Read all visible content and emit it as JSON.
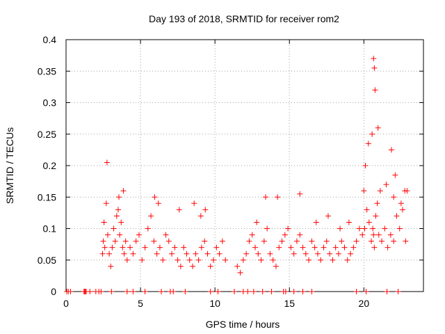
{
  "chart_data": {
    "type": "scatter",
    "title": "Day 193 of 2018, SRMTID for receiver rom2",
    "xlabel": "GPS time / hours",
    "ylabel": "SRMTID / TECUs",
    "xlim": [
      0,
      24
    ],
    "ylim": [
      0,
      0.4
    ],
    "xticks": [
      0,
      5,
      10,
      15,
      20
    ],
    "xtick_labels": [
      "0",
      "5",
      "10",
      "15",
      "20"
    ],
    "yticks": [
      0,
      0.05,
      0.1,
      0.15,
      0.2,
      0.25,
      0.3,
      0.35,
      0.4
    ],
    "ytick_labels": [
      "0",
      "0.05",
      "0.1",
      "0.15",
      "0.2",
      "0.25",
      "0.3",
      "0.35",
      "0.4"
    ],
    "grid": true,
    "marker": "+",
    "color": "#ff0000",
    "series": [
      {
        "name": "SRMTID",
        "x": [
          0.05,
          0.15,
          1.2,
          1.25,
          1.3,
          1.35,
          2.0,
          2.2,
          2.45,
          2.5,
          2.55,
          2.6,
          2.7,
          2.8,
          2.9,
          3.0,
          3.1,
          3.2,
          3.3,
          3.4,
          3.5,
          3.6,
          3.7,
          3.8,
          3.9,
          4.0,
          4.1,
          4.3,
          4.5,
          4.7,
          4.9,
          5.1,
          5.3,
          5.5,
          5.7,
          5.9,
          6.1,
          6.3,
          6.5,
          6.7,
          6.9,
          7.1,
          7.3,
          7.5,
          7.7,
          7.9,
          8.1,
          8.3,
          8.5,
          8.7,
          8.9,
          9.1,
          9.3,
          9.5,
          9.7,
          9.9,
          10.1,
          10.3,
          10.5,
          10.7,
          11.5,
          11.7,
          11.9,
          12.1,
          12.3,
          12.5,
          12.7,
          12.9,
          13.1,
          13.3,
          13.5,
          13.7,
          13.9,
          14.1,
          14.3,
          14.5,
          14.7,
          14.9,
          15.1,
          15.3,
          15.5,
          15.7,
          15.9,
          16.1,
          16.3,
          16.5,
          16.7,
          16.9,
          17.1,
          17.3,
          17.5,
          17.7,
          17.9,
          18.1,
          18.3,
          18.5,
          18.7,
          18.9,
          19.1,
          19.3,
          19.5,
          19.7,
          19.9,
          20.05,
          20.2,
          20.35,
          20.5,
          20.6,
          20.65,
          20.7,
          20.8,
          20.9,
          21.0,
          21.2,
          21.4,
          21.6,
          21.8,
          22.0,
          22.2,
          22.4,
          22.6,
          22.8,
          2.75,
          3.55,
          5.95,
          8.6,
          9.35,
          13.4,
          15.7,
          20.0,
          20.1,
          20.3,
          20.55,
          20.65,
          20.7,
          20.75,
          20.95,
          21.85,
          22.1,
          22.75,
          0.3,
          1.6,
          2.35,
          3.05,
          4.1,
          4.5,
          5.3,
          6.4,
          7.0,
          7.2,
          8.0,
          9.7,
          10.2,
          11.3,
          11.9,
          12.2,
          12.6,
          13.2,
          13.8,
          14.6,
          14.75,
          15.3,
          15.9,
          16.5,
          19.5,
          20.15,
          21.55,
          22.3,
          3.85,
          6.2,
          7.6,
          9.05,
          12.8,
          14.2,
          16.8,
          17.6,
          18.4,
          19.0,
          21.1,
          21.5,
          22.0,
          22.5,
          22.9
        ],
        "y": [
          0.0,
          0.0,
          0.0,
          0.0,
          0.0,
          0.0,
          0.0,
          0.0,
          0.06,
          0.08,
          0.11,
          0.07,
          0.14,
          0.09,
          0.06,
          0.04,
          0.07,
          0.1,
          0.08,
          0.12,
          0.13,
          0.09,
          0.11,
          0.07,
          0.06,
          0.08,
          0.05,
          0.07,
          0.06,
          0.08,
          0.09,
          0.05,
          0.07,
          0.1,
          0.12,
          0.08,
          0.06,
          0.07,
          0.05,
          0.09,
          0.08,
          0.06,
          0.07,
          0.05,
          0.04,
          0.07,
          0.06,
          0.05,
          0.04,
          0.06,
          0.05,
          0.07,
          0.08,
          0.06,
          0.04,
          0.05,
          0.07,
          0.06,
          0.08,
          0.05,
          0.04,
          0.03,
          0.05,
          0.06,
          0.08,
          0.09,
          0.07,
          0.06,
          0.05,
          0.08,
          0.1,
          0.06,
          0.05,
          0.04,
          0.07,
          0.08,
          0.09,
          0.1,
          0.07,
          0.06,
          0.08,
          0.09,
          0.07,
          0.06,
          0.05,
          0.08,
          0.07,
          0.06,
          0.05,
          0.07,
          0.08,
          0.06,
          0.05,
          0.07,
          0.06,
          0.08,
          0.07,
          0.05,
          0.06,
          0.07,
          0.08,
          0.1,
          0.09,
          0.1,
          0.13,
          0.11,
          0.08,
          0.1,
          0.09,
          0.07,
          0.12,
          0.14,
          0.09,
          0.08,
          0.1,
          0.07,
          0.09,
          0.08,
          0.12,
          0.1,
          0.13,
          0.08,
          0.205,
          0.15,
          0.15,
          0.14,
          0.13,
          0.15,
          0.155,
          0.16,
          0.2,
          0.235,
          0.25,
          0.37,
          0.355,
          0.32,
          0.26,
          0.225,
          0.185,
          0.16,
          0.0,
          0.0,
          0.0,
          0.0,
          0.0,
          0.0,
          0.0,
          0.0,
          0.0,
          0.0,
          0.0,
          0.0,
          0.0,
          0.0,
          0.0,
          0.0,
          0.0,
          0.0,
          0.0,
          0.0,
          0.0,
          0.0,
          0.0,
          0.0,
          0.0,
          0.0,
          0.0,
          0.0,
          0.16,
          0.14,
          0.13,
          0.12,
          0.11,
          0.15,
          0.11,
          0.12,
          0.1,
          0.11,
          0.16,
          0.17,
          0.15,
          0.14,
          0.16
        ]
      }
    ]
  }
}
